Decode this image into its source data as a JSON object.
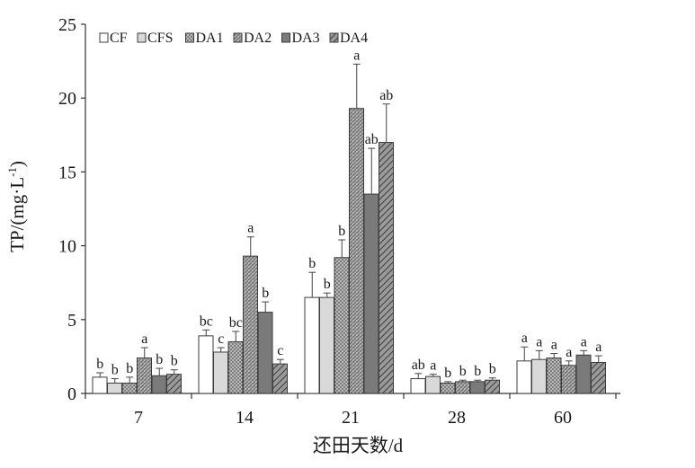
{
  "chart_data": {
    "type": "bar",
    "title": "",
    "xlabel": "还田天数/d",
    "ylabel_parts": {
      "main": "TP/(mg·L",
      "sup": "-1",
      "close": ")"
    },
    "ylim": [
      0,
      25
    ],
    "yticks": [
      0,
      5,
      10,
      15,
      20,
      25
    ],
    "categories": [
      "7",
      "14",
      "21",
      "28",
      "60"
    ],
    "legend_position": "top-left",
    "grid": false,
    "series": [
      {
        "name": "CF",
        "pattern": "white",
        "values": [
          1.1,
          3.9,
          6.5,
          1.0,
          2.2
        ],
        "errors": [
          0.3,
          0.4,
          1.7,
          0.35,
          0.95
        ],
        "labels": [
          "b",
          "bc",
          "b",
          "ab",
          "a"
        ]
      },
      {
        "name": "CFS",
        "pattern": "lightgray",
        "values": [
          0.7,
          2.8,
          6.5,
          1.15,
          2.3
        ],
        "errors": [
          0.3,
          0.3,
          0.3,
          0.15,
          0.6
        ],
        "labels": [
          "b",
          "c",
          "b",
          "a",
          "a"
        ]
      },
      {
        "name": "DA1",
        "pattern": "dots",
        "values": [
          0.7,
          3.5,
          9.2,
          0.7,
          2.4
        ],
        "errors": [
          0.4,
          0.7,
          1.2,
          0.1,
          0.3
        ],
        "labels": [
          "b",
          "bc",
          "b",
          "b",
          "a"
        ]
      },
      {
        "name": "DA2",
        "pattern": "dense",
        "values": [
          2.4,
          9.3,
          19.3,
          0.8,
          1.9
        ],
        "errors": [
          0.7,
          1.3,
          3.0,
          0.1,
          0.3
        ],
        "labels": [
          "a",
          "a",
          "a",
          "b",
          "a"
        ]
      },
      {
        "name": "DA3",
        "pattern": "darkgray",
        "values": [
          1.2,
          5.5,
          13.5,
          0.8,
          2.6
        ],
        "errors": [
          0.5,
          0.7,
          3.1,
          0.1,
          0.3
        ],
        "labels": [
          "b",
          "b",
          "ab",
          "b",
          "a"
        ]
      },
      {
        "name": "DA4",
        "pattern": "hatch",
        "values": [
          1.3,
          2.0,
          17.0,
          0.9,
          2.1
        ],
        "errors": [
          0.3,
          0.3,
          2.6,
          0.15,
          0.45
        ],
        "labels": [
          "b",
          "c",
          "ab",
          "b",
          "a"
        ]
      }
    ]
  }
}
